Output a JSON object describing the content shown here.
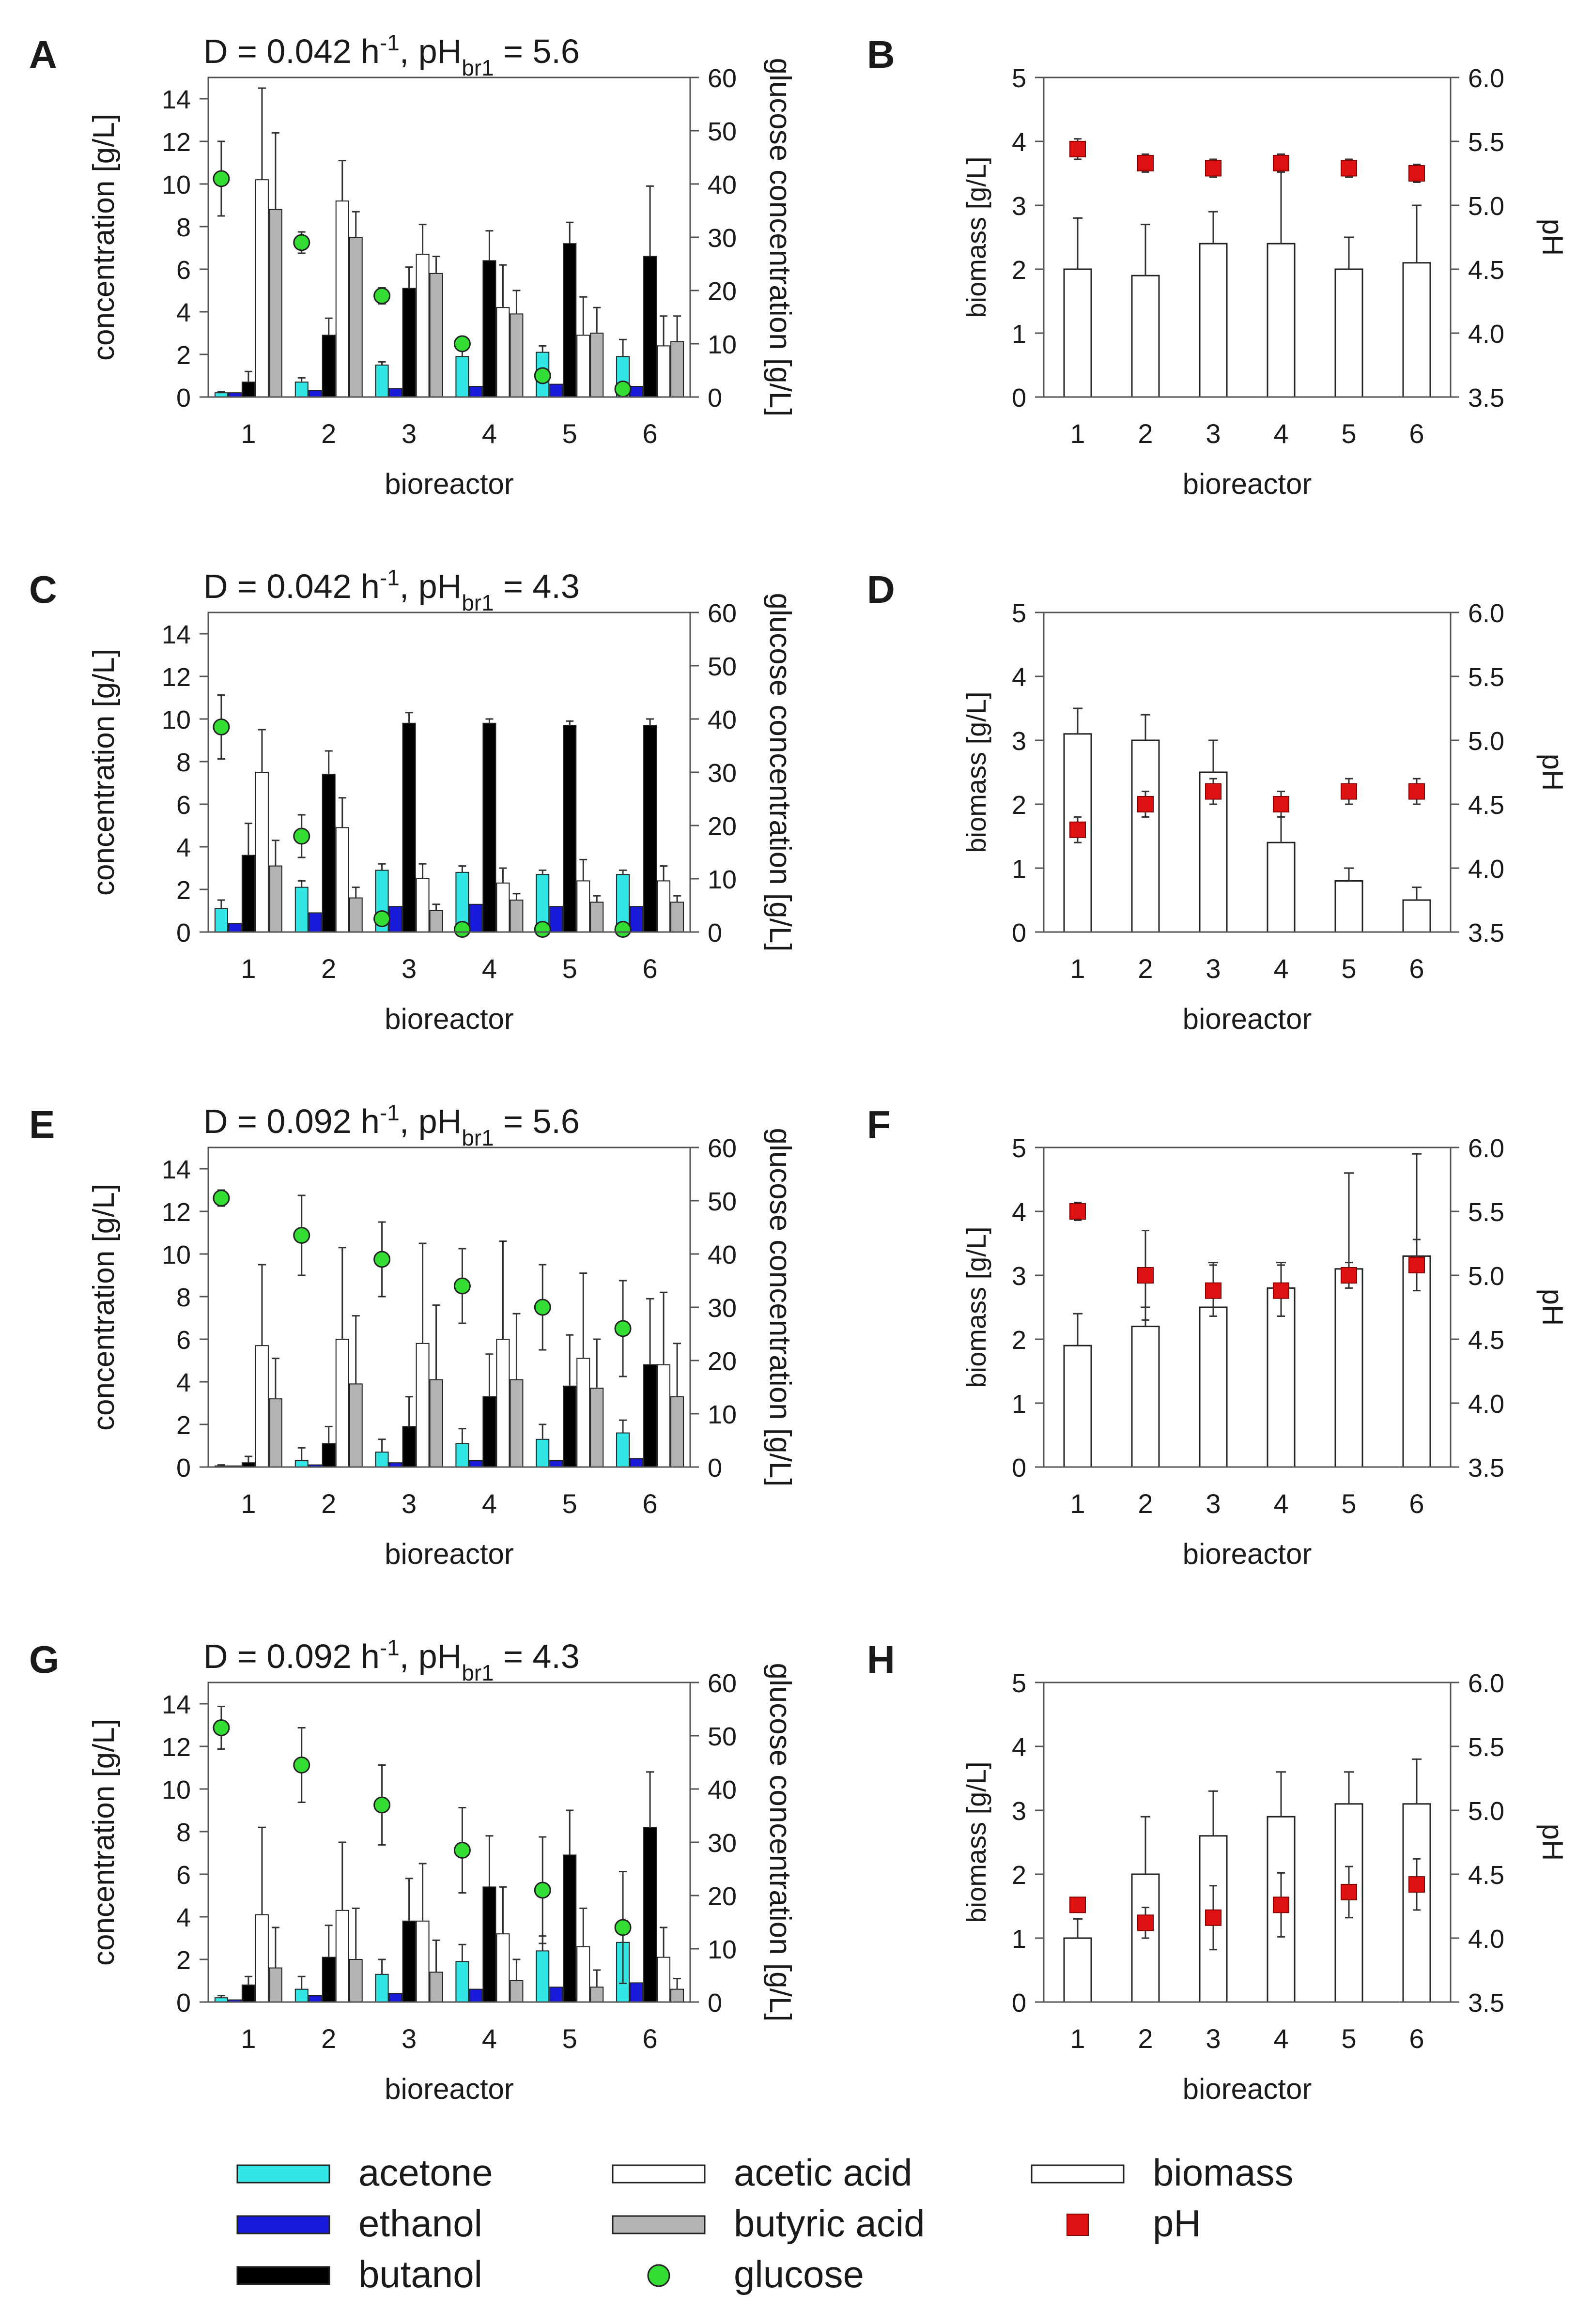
{
  "chart_data": [
    {
      "id": "A",
      "type": "bar",
      "panel_label": "A",
      "title_parts": [
        "D = 0.042 h",
        "-1",
        ", pH",
        "br1",
        " = 5.6"
      ],
      "xlabel": "bioreactor",
      "ylabel": "concentration [g/L]",
      "y2label": "glucose concentration [g/L]",
      "categories": [
        "1",
        "2",
        "3",
        "4",
        "5",
        "6"
      ],
      "ylim": [
        0,
        15
      ],
      "y2lim": [
        0,
        60
      ],
      "yticks": [
        "0",
        "2",
        "4",
        "6",
        "8",
        "10",
        "12",
        "14"
      ],
      "y2ticks": [
        "0",
        "10",
        "20",
        "30",
        "40",
        "50",
        "60"
      ],
      "series": [
        {
          "name": "acetone",
          "values": [
            0.2,
            0.7,
            1.5,
            1.9,
            2.1,
            1.9
          ],
          "errors": [
            0.05,
            0.2,
            0.15,
            0.3,
            0.3,
            0.8
          ]
        },
        {
          "name": "ethanol",
          "values": [
            0.2,
            0.3,
            0.4,
            0.5,
            0.6,
            0.5
          ],
          "errors": [
            0,
            0,
            0,
            0,
            0,
            0
          ]
        },
        {
          "name": "butanol",
          "values": [
            0.7,
            2.9,
            5.1,
            6.4,
            7.2,
            6.6
          ],
          "errors": [
            0.5,
            0.8,
            1.0,
            1.4,
            1.0,
            3.3
          ]
        },
        {
          "name": "acetic acid",
          "values": [
            10.2,
            9.2,
            6.7,
            4.2,
            2.9,
            2.4
          ],
          "errors": [
            4.3,
            1.9,
            1.4,
            2.0,
            1.8,
            1.4
          ]
        },
        {
          "name": "butyric acid",
          "values": [
            8.8,
            7.5,
            5.8,
            3.9,
            3.0,
            2.6
          ],
          "errors": [
            3.6,
            1.2,
            0.8,
            1.1,
            1.2,
            1.2
          ]
        }
      ],
      "glucose": {
        "name": "glucose",
        "values": [
          41,
          29,
          19,
          10,
          4,
          1.5
        ],
        "errors": [
          7,
          2,
          1.5,
          1,
          1,
          0.5
        ]
      }
    },
    {
      "id": "B",
      "type": "bar",
      "panel_label": "B",
      "xlabel": "bioreactor",
      "ylabel": "biomass [g/L]",
      "y2label": "pH",
      "categories": [
        "1",
        "2",
        "3",
        "4",
        "5",
        "6"
      ],
      "ylim": [
        0,
        5
      ],
      "y2lim": [
        3.5,
        6.0
      ],
      "yticks": [
        "0",
        "1",
        "2",
        "3",
        "4",
        "5"
      ],
      "y2ticks": [
        "3.5",
        "4.0",
        "4.5",
        "5.0",
        "5.5",
        "6.0"
      ],
      "biomass": {
        "name": "biomass",
        "values": [
          2.0,
          1.9,
          2.4,
          2.4,
          2.0,
          2.1
        ],
        "errors": [
          0.8,
          0.8,
          0.5,
          1.2,
          0.5,
          0.9
        ]
      },
      "ph": {
        "name": "pH",
        "values": [
          5.44,
          5.33,
          5.29,
          5.33,
          5.29,
          5.25
        ],
        "errors": [
          0.08,
          0.07,
          0.07,
          0.07,
          0.07,
          0.07
        ]
      }
    },
    {
      "id": "C",
      "type": "bar",
      "panel_label": "C",
      "title_parts": [
        "D = 0.042 h",
        "-1",
        ", pH",
        "br1",
        " = 4.3"
      ],
      "xlabel": "bioreactor",
      "ylabel": "concentration [g/L]",
      "y2label": "glucose concentration [g/L]",
      "categories": [
        "1",
        "2",
        "3",
        "4",
        "5",
        "6"
      ],
      "ylim": [
        0,
        15
      ],
      "y2lim": [
        0,
        60
      ],
      "yticks": [
        "0",
        "2",
        "4",
        "6",
        "8",
        "10",
        "12",
        "14"
      ],
      "y2ticks": [
        "0",
        "10",
        "20",
        "30",
        "40",
        "50",
        "60"
      ],
      "series": [
        {
          "name": "acetone",
          "values": [
            1.1,
            2.1,
            2.9,
            2.8,
            2.7,
            2.7
          ],
          "errors": [
            0.4,
            0.3,
            0.3,
            0.3,
            0.2,
            0.2
          ]
        },
        {
          "name": "ethanol",
          "values": [
            0.4,
            0.9,
            1.2,
            1.3,
            1.2,
            1.2
          ],
          "errors": [
            0,
            0,
            0,
            0,
            0,
            0
          ]
        },
        {
          "name": "butanol",
          "values": [
            3.6,
            7.4,
            9.8,
            9.8,
            9.7,
            9.7
          ],
          "errors": [
            1.5,
            1.1,
            0.5,
            0.2,
            0.2,
            0.3
          ]
        },
        {
          "name": "acetic acid",
          "values": [
            7.5,
            4.9,
            2.5,
            2.3,
            2.4,
            2.4
          ],
          "errors": [
            2.0,
            1.4,
            0.7,
            0.7,
            1.0,
            0.7
          ]
        },
        {
          "name": "butyric acid",
          "values": [
            3.1,
            1.6,
            1.0,
            1.5,
            1.4,
            1.4
          ],
          "errors": [
            1.2,
            0.5,
            0.3,
            0.3,
            0.3,
            0.3
          ]
        }
      ],
      "glucose": {
        "name": "glucose",
        "values": [
          38.5,
          18,
          2.5,
          0.5,
          0.5,
          0.5
        ],
        "errors": [
          6,
          4,
          0.5,
          0.2,
          0.2,
          0.2
        ]
      }
    },
    {
      "id": "D",
      "type": "bar",
      "panel_label": "D",
      "xlabel": "bioreactor",
      "ylabel": "biomass [g/L]",
      "y2label": "pH",
      "categories": [
        "1",
        "2",
        "3",
        "4",
        "5",
        "6"
      ],
      "ylim": [
        0,
        5
      ],
      "y2lim": [
        3.5,
        6.0
      ],
      "yticks": [
        "0",
        "1",
        "2",
        "3",
        "4",
        "5"
      ],
      "y2ticks": [
        "3.5",
        "4.0",
        "4.5",
        "5.0",
        "5.5",
        "6.0"
      ],
      "biomass": {
        "name": "biomass",
        "values": [
          3.1,
          3.0,
          2.5,
          1.4,
          0.8,
          0.5
        ],
        "errors": [
          0.4,
          0.4,
          0.5,
          0.6,
          0.2,
          0.2
        ]
      },
      "ph": {
        "name": "pH",
        "values": [
          4.3,
          4.5,
          4.6,
          4.5,
          4.6,
          4.6
        ],
        "errors": [
          0.1,
          0.1,
          0.1,
          0.1,
          0.1,
          0.1
        ]
      }
    },
    {
      "id": "E",
      "type": "bar",
      "panel_label": "E",
      "title_parts": [
        "D = 0.092 h",
        "-1",
        ", pH",
        "br1",
        " = 5.6"
      ],
      "xlabel": "bioreactor",
      "ylabel": "concentration [g/L]",
      "y2label": "glucose concentration [g/L]",
      "categories": [
        "1",
        "2",
        "3",
        "4",
        "5",
        "6"
      ],
      "ylim": [
        0,
        15
      ],
      "y2lim": [
        0,
        60
      ],
      "yticks": [
        "0",
        "2",
        "4",
        "6",
        "8",
        "10",
        "12",
        "14"
      ],
      "y2ticks": [
        "0",
        "10",
        "20",
        "30",
        "40",
        "50",
        "60"
      ],
      "series": [
        {
          "name": "acetone",
          "values": [
            0.05,
            0.3,
            0.7,
            1.1,
            1.3,
            1.6
          ],
          "errors": [
            0.05,
            0.6,
            0.6,
            0.7,
            0.7,
            0.6
          ]
        },
        {
          "name": "ethanol",
          "values": [
            0.05,
            0.1,
            0.2,
            0.3,
            0.3,
            0.4
          ],
          "errors": [
            0,
            0,
            0,
            0,
            0,
            0
          ]
        },
        {
          "name": "butanol",
          "values": [
            0.2,
            1.1,
            1.9,
            3.3,
            3.8,
            4.8
          ],
          "errors": [
            0.3,
            0.8,
            1.4,
            2.0,
            2.4,
            3.1
          ]
        },
        {
          "name": "acetic acid",
          "values": [
            5.7,
            6.0,
            5.8,
            6.0,
            5.1,
            4.8
          ],
          "errors": [
            3.8,
            4.3,
            4.7,
            4.6,
            4.0,
            3.4
          ]
        },
        {
          "name": "butyric acid",
          "values": [
            3.2,
            3.9,
            4.1,
            4.1,
            3.7,
            3.3
          ],
          "errors": [
            1.9,
            3.2,
            3.5,
            3.1,
            2.3,
            2.5
          ]
        }
      ],
      "glucose": {
        "name": "glucose",
        "values": [
          50.5,
          43.5,
          39,
          34,
          30,
          26
        ],
        "errors": [
          1.5,
          7.5,
          7,
          7,
          8,
          9
        ]
      }
    },
    {
      "id": "F",
      "type": "bar",
      "panel_label": "F",
      "xlabel": "bioreactor",
      "ylabel": "biomass [g/L]",
      "y2label": "pH",
      "categories": [
        "1",
        "2",
        "3",
        "4",
        "5",
        "6"
      ],
      "ylim": [
        0,
        5
      ],
      "y2lim": [
        3.5,
        6.0
      ],
      "yticks": [
        "0",
        "1",
        "2",
        "3",
        "4",
        "5"
      ],
      "y2ticks": [
        "3.5",
        "4.0",
        "4.5",
        "5.0",
        "5.5",
        "6.0"
      ],
      "biomass": {
        "name": "biomass",
        "values": [
          1.9,
          2.2,
          2.5,
          2.8,
          3.1,
          3.3
        ],
        "errors": [
          0.5,
          0.3,
          0.7,
          0.4,
          1.5,
          1.6
        ]
      },
      "ph": {
        "name": "pH",
        "values": [
          5.5,
          5.0,
          4.88,
          4.88,
          5.0,
          5.08
        ],
        "errors": [
          0.07,
          0.35,
          0.2,
          0.2,
          0.1,
          0.2
        ]
      }
    },
    {
      "id": "G",
      "type": "bar",
      "panel_label": "G",
      "title_parts": [
        "D = 0.092 h",
        "-1",
        ", pH",
        "br1",
        " = 4.3"
      ],
      "xlabel": "bioreactor",
      "ylabel": "concentration [g/L]",
      "y2label": "glucose concentration [g/L]",
      "categories": [
        "1",
        "2",
        "3",
        "4",
        "5",
        "6"
      ],
      "ylim": [
        0,
        15
      ],
      "y2lim": [
        0,
        60
      ],
      "yticks": [
        "0",
        "2",
        "4",
        "6",
        "8",
        "10",
        "12",
        "14"
      ],
      "y2ticks": [
        "0",
        "10",
        "20",
        "30",
        "40",
        "50",
        "60"
      ],
      "series": [
        {
          "name": "acetone",
          "values": [
            0.2,
            0.6,
            1.3,
            1.9,
            2.4,
            2.8
          ],
          "errors": [
            0.1,
            0.6,
            0.7,
            0.8,
            0.7,
            0.6
          ]
        },
        {
          "name": "ethanol",
          "values": [
            0.1,
            0.3,
            0.4,
            0.6,
            0.7,
            0.9
          ],
          "errors": [
            0,
            0,
            0,
            0,
            0,
            0
          ]
        },
        {
          "name": "butanol",
          "values": [
            0.8,
            2.1,
            3.8,
            5.4,
            6.9,
            8.2
          ],
          "errors": [
            0.4,
            1.5,
            2.0,
            2.4,
            2.1,
            2.6
          ]
        },
        {
          "name": "acetic acid",
          "values": [
            4.1,
            4.3,
            3.8,
            3.2,
            2.6,
            2.1
          ],
          "errors": [
            4.1,
            3.2,
            2.7,
            2.2,
            1.8,
            1.4
          ]
        },
        {
          "name": "butyric acid",
          "values": [
            1.6,
            2.0,
            1.4,
            1.0,
            0.7,
            0.6
          ],
          "errors": [
            1.9,
            2.4,
            1.5,
            1.0,
            0.8,
            0.5
          ]
        }
      ],
      "glucose": {
        "name": "glucose",
        "values": [
          51.5,
          44.5,
          37,
          28.5,
          21,
          14
        ],
        "errors": [
          4,
          7,
          7.5,
          8,
          10,
          10.5
        ]
      }
    },
    {
      "id": "H",
      "type": "bar",
      "panel_label": "H",
      "xlabel": "bioreactor",
      "ylabel": "biomass [g/L]",
      "y2label": "pH",
      "categories": [
        "1",
        "2",
        "3",
        "4",
        "5",
        "6"
      ],
      "ylim": [
        0,
        5
      ],
      "y2lim": [
        3.5,
        6.0
      ],
      "yticks": [
        "0",
        "1",
        "2",
        "3",
        "4",
        "5"
      ],
      "y2ticks": [
        "3.5",
        "4.0",
        "4.5",
        "5.0",
        "5.5",
        "6.0"
      ],
      "biomass": {
        "name": "biomass",
        "values": [
          1.0,
          2.0,
          2.6,
          2.9,
          3.1,
          3.1
        ],
        "errors": [
          0.3,
          0.9,
          0.7,
          0.7,
          0.5,
          0.7
        ]
      },
      "ph": {
        "name": "pH",
        "values": [
          4.26,
          4.12,
          4.16,
          4.26,
          4.36,
          4.42
        ],
        "errors": [
          0.05,
          0.12,
          0.25,
          0.25,
          0.2,
          0.2
        ]
      }
    }
  ],
  "legend": [
    {
      "key": "acetone",
      "label": "acetone"
    },
    {
      "key": "ethanol",
      "label": "ethanol"
    },
    {
      "key": "butanol",
      "label": "butanol"
    },
    {
      "key": "acetic_acid",
      "label": "acetic acid"
    },
    {
      "key": "butyric_acid",
      "label": "butyric acid"
    },
    {
      "key": "glucose",
      "label": "glucose"
    },
    {
      "key": "biomass",
      "label": "biomass"
    },
    {
      "key": "ph",
      "label": "pH"
    }
  ],
  "colors": {
    "acetone": "#33e6e6",
    "ethanol": "#1a1adb",
    "butanol": "#000000",
    "acetic_acid": "#ffffff",
    "butyric_acid": "#b3b3b3",
    "glucose": "#33dd33",
    "biomass": "#ffffff",
    "ph": "#dd1111",
    "axis": "#1a1a1a"
  }
}
